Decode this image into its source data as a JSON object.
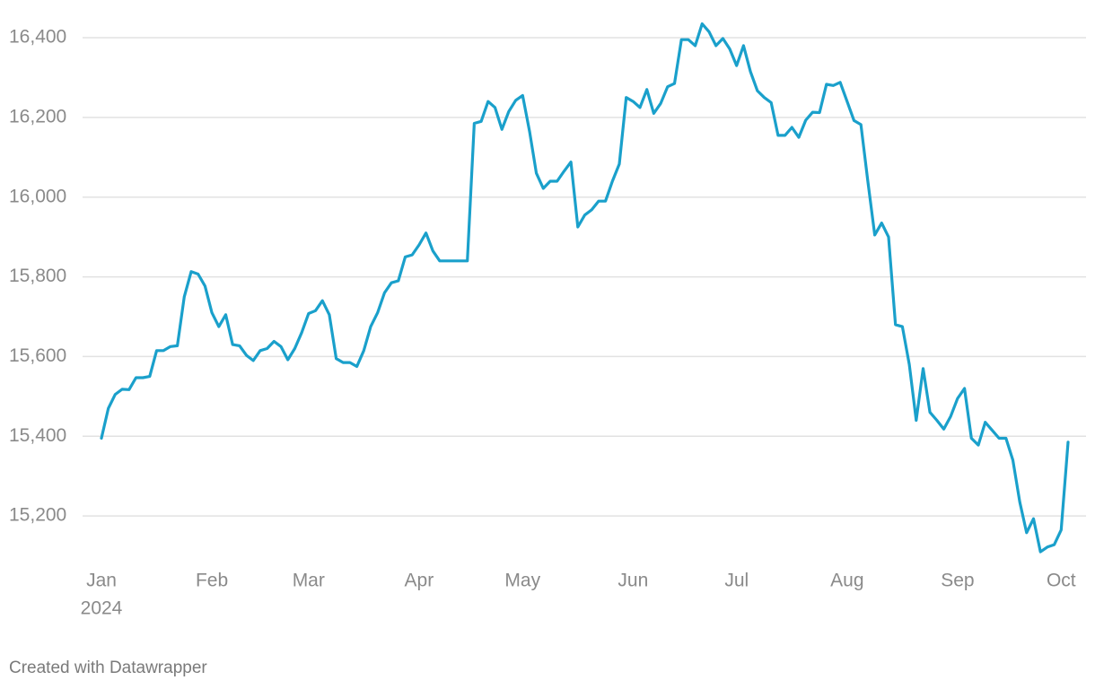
{
  "chart_data": {
    "type": "line",
    "categories": [
      "Jan",
      null,
      null,
      null,
      null,
      null,
      null,
      null,
      null,
      null,
      null,
      null,
      null,
      null,
      null,
      null,
      "Feb",
      null,
      null,
      null,
      null,
      null,
      null,
      null,
      null,
      null,
      null,
      null,
      null,
      null,
      "Mar",
      null,
      null,
      null,
      null,
      null,
      null,
      null,
      null,
      null,
      null,
      null,
      null,
      null,
      null,
      null,
      "Apr",
      null,
      null,
      null,
      null,
      null,
      null,
      null,
      null,
      null,
      null,
      null,
      null,
      null,
      null,
      "May",
      null,
      null,
      null,
      null,
      null,
      null,
      null,
      null,
      null,
      null,
      null,
      null,
      null,
      null,
      null,
      "Jun",
      null,
      null,
      null,
      null,
      null,
      null,
      null,
      null,
      null,
      null,
      null,
      null,
      null,
      null,
      "Jul",
      null,
      null,
      null,
      null,
      null,
      null,
      null,
      null,
      null,
      null,
      null,
      null,
      null,
      null,
      null,
      "Aug",
      null,
      null,
      null,
      null,
      null,
      null,
      null,
      null,
      null,
      null,
      null,
      null,
      null,
      null,
      null,
      "Sep",
      null,
      null,
      null,
      null,
      null,
      null,
      null,
      null,
      null,
      null,
      null,
      null,
      null,
      null,
      "Oct",
      null
    ],
    "year": "2024",
    "values": [
      15395,
      15470,
      15505,
      15518,
      15517,
      15547,
      15547,
      15550,
      15615,
      15615,
      15625,
      15627,
      15750,
      15813,
      15807,
      15777,
      15710,
      15675,
      15705,
      15630,
      15627,
      15603,
      15590,
      15615,
      15620,
      15638,
      15625,
      15592,
      15620,
      15660,
      15708,
      15715,
      15740,
      15705,
      15595,
      15585,
      15585,
      15575,
      15615,
      15675,
      15710,
      15760,
      15785,
      15790,
      15850,
      15855,
      15880,
      15910,
      15865,
      15840,
      15840,
      15840,
      15840,
      15840,
      16185,
      16190,
      16240,
      16225,
      16170,
      16215,
      16243,
      16255,
      16165,
      16060,
      16022,
      16040,
      16040,
      16065,
      16088,
      15925,
      15955,
      15968,
      15990,
      15990,
      16040,
      16083,
      16250,
      16240,
      16225,
      16270,
      16210,
      16235,
      16277,
      16285,
      16395,
      16395,
      16380,
      16435,
      16415,
      16380,
      16398,
      16372,
      16330,
      16380,
      16315,
      16267,
      16250,
      16237,
      16155,
      16155,
      16175,
      16150,
      16193,
      16213,
      16212,
      16283,
      16280,
      16288,
      16240,
      16192,
      16182,
      16040,
      15905,
      15935,
      15900,
      15680,
      15675,
      15580,
      15440,
      15570,
      15460,
      15440,
      15418,
      15450,
      15495,
      15520,
      15395,
      15378,
      15435,
      15415,
      15395,
      15395,
      15340,
      15235,
      15158,
      15193,
      15110,
      15122,
      15128,
      15165,
      15385
    ],
    "color": "#1aa0cb",
    "ylim": [
      15090,
      16430
    ],
    "yticks": [
      {
        "value": 15200,
        "label": "15,200"
      },
      {
        "value": 15400,
        "label": "15,400"
      },
      {
        "value": 15600,
        "label": "15,600"
      },
      {
        "value": 15800,
        "label": "15,800"
      },
      {
        "value": 16000,
        "label": "16,000"
      },
      {
        "value": 16200,
        "label": "16,200"
      },
      {
        "value": 16400,
        "label": "16,400"
      }
    ],
    "grid": true,
    "footer": "Created with Datawrapper"
  }
}
